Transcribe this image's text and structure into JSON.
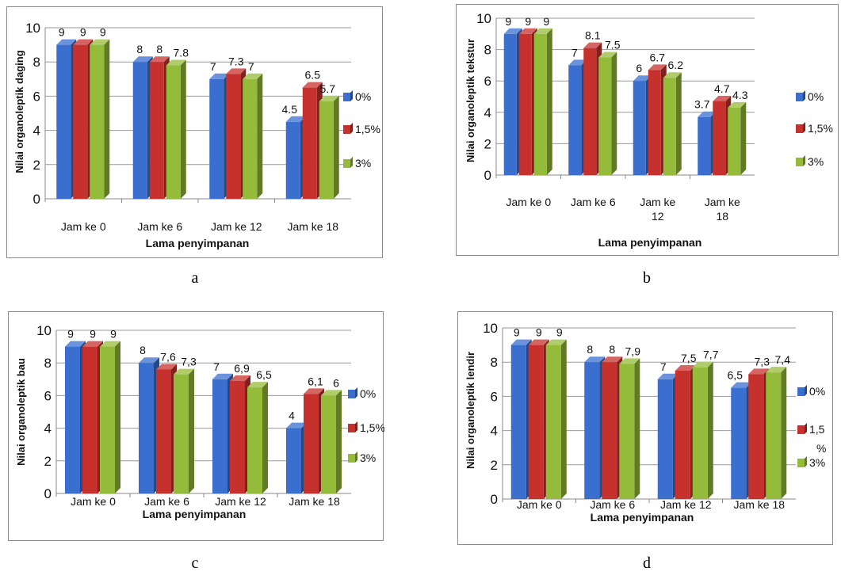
{
  "colors": {
    "0%": "#3a6fd0",
    "1,5%": "#c6312d",
    "3%": "#95bb3a"
  },
  "chart_data": [
    {
      "type": "bar",
      "panel_label": "a",
      "ylabel": "Nilai organoleptik daging",
      "xlabel": "Lama penyimpanan",
      "categories": [
        [
          "Jam ke 0"
        ],
        [
          "Jam ke 6"
        ],
        [
          "Jam ke 12"
        ],
        [
          "Jam ke 18"
        ]
      ],
      "yticks": [
        "0",
        "2",
        "4",
        "6",
        "8",
        "10"
      ],
      "ylim": [
        0,
        10
      ],
      "legend_position": "right",
      "grid": true,
      "series": [
        {
          "name": "0%",
          "values": [
            9,
            8,
            7,
            4.5
          ],
          "labels": [
            "9",
            "8",
            "7",
            "4.5"
          ]
        },
        {
          "name": "1,5%",
          "values": [
            9,
            8,
            7.3,
            6.5
          ],
          "labels": [
            "9",
            "8",
            "7.3",
            "6.5"
          ]
        },
        {
          "name": "3%",
          "values": [
            9,
            7.8,
            7,
            5.7
          ],
          "labels": [
            "9",
            "7.8",
            "7",
            "5.7"
          ]
        }
      ]
    },
    {
      "type": "bar",
      "panel_label": "b",
      "ylabel": "Nilai organoleptik  tekstur",
      "xlabel": "Lama penyimpanan",
      "categories": [
        [
          "Jam ke 0"
        ],
        [
          "Jam ke 6"
        ],
        [
          "Jam ke",
          "12"
        ],
        [
          "Jam ke",
          "18"
        ]
      ],
      "yticks": [
        "0",
        "2",
        "4",
        "6",
        "8",
        "10"
      ],
      "ylim": [
        0,
        10
      ],
      "legend_position": "right",
      "grid": true,
      "series": [
        {
          "name": "0%",
          "values": [
            9,
            7,
            6,
            3.7
          ],
          "labels": [
            "9",
            "7",
            "6",
            "3.7"
          ]
        },
        {
          "name": "1,5%",
          "values": [
            9,
            8.1,
            6.7,
            4.7
          ],
          "labels": [
            "9",
            "8.1",
            "6.7",
            "4.7"
          ]
        },
        {
          "name": "3%",
          "values": [
            9,
            7.5,
            6.2,
            4.3
          ],
          "labels": [
            "9",
            "7.5",
            "6.2",
            "4.3"
          ]
        }
      ]
    },
    {
      "type": "bar",
      "panel_label": "c",
      "ylabel": "Nilai organoleptik bau",
      "xlabel": "Lama penyimpanan",
      "categories": [
        [
          "Jam ke 0"
        ],
        [
          "Jam ke 6"
        ],
        [
          "Jam ke 12"
        ],
        [
          "Jam ke 18"
        ]
      ],
      "yticks": [
        "0",
        "2",
        "4",
        "6",
        "8",
        "10"
      ],
      "ylim": [
        0,
        10
      ],
      "legend_position": "right",
      "grid": true,
      "series": [
        {
          "name": "0%",
          "values": [
            9,
            8,
            7,
            4
          ],
          "labels": [
            "9",
            "8",
            "7",
            "4"
          ]
        },
        {
          "name": "1,5%",
          "values": [
            9,
            7.6,
            6.9,
            6.1
          ],
          "labels": [
            "9",
            "7,6",
            "6,9",
            "6,1"
          ]
        },
        {
          "name": "3%",
          "values": [
            9,
            7.3,
            6.5,
            6
          ],
          "labels": [
            "9",
            "7,3",
            "6,5",
            "6"
          ]
        }
      ]
    },
    {
      "type": "bar",
      "panel_label": "d",
      "ylabel": "Nilai organoleptik lendir",
      "xlabel": "Lama penyimpanan",
      "categories": [
        [
          "Jam ke 0"
        ],
        [
          "Jam ke 6"
        ],
        [
          "Jam ke 12"
        ],
        [
          "Jam ke 18"
        ]
      ],
      "yticks": [
        "0",
        "2",
        "4",
        "6",
        "8",
        "10"
      ],
      "ylim": [
        0,
        10
      ],
      "legend_position": "right",
      "grid": true,
      "series": [
        {
          "name": "0%",
          "values": [
            9,
            8,
            7,
            6.5
          ],
          "labels": [
            "9",
            "8",
            "7",
            "6,5"
          ]
        },
        {
          "name": "1,5\n%",
          "values": [
            9,
            8,
            7.5,
            7.3
          ],
          "labels": [
            "9",
            "8",
            "7,5",
            "7,3"
          ]
        },
        {
          "name": "3%",
          "values": [
            9,
            7.9,
            7.7,
            7.4
          ],
          "labels": [
            "9",
            "7,9",
            "7,7",
            "7,4"
          ]
        }
      ]
    }
  ]
}
